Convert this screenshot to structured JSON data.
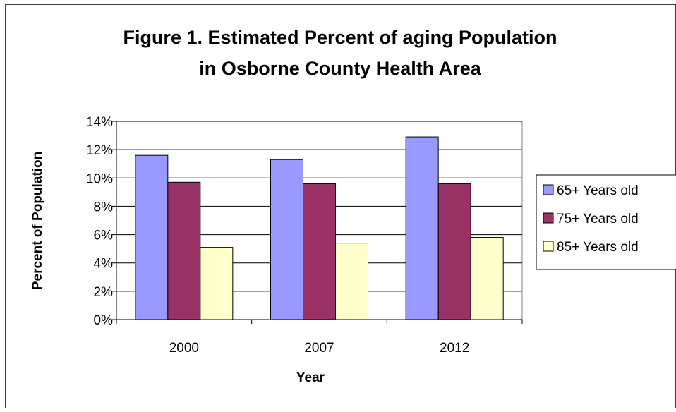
{
  "chart_data": {
    "type": "bar",
    "title_lines": [
      "Figure 1. Estimated Percent of aging Population",
      "in Osborne County Health Area"
    ],
    "xlabel": "Year",
    "ylabel": "Percent of Population",
    "categories": [
      "2000",
      "2007",
      "2012"
    ],
    "series": [
      {
        "name": "65+ Years old",
        "color": "#9999ff",
        "values": [
          11.6,
          11.3,
          12.9
        ]
      },
      {
        "name": "75+ Years old",
        "color": "#993366",
        "values": [
          9.7,
          9.6,
          9.6
        ]
      },
      {
        "name": "85+ Years old",
        "color": "#ffffcc",
        "values": [
          5.1,
          5.4,
          5.8
        ]
      }
    ],
    "ylim": [
      0,
      14
    ],
    "yticks": [
      0,
      2,
      4,
      6,
      8,
      10,
      12,
      14
    ],
    "ytick_labels": [
      "0%",
      "2%",
      "4%",
      "6%",
      "8%",
      "10%",
      "12%",
      "14%"
    ],
    "y_unit": "%",
    "grid": true,
    "legend_position": "right"
  }
}
